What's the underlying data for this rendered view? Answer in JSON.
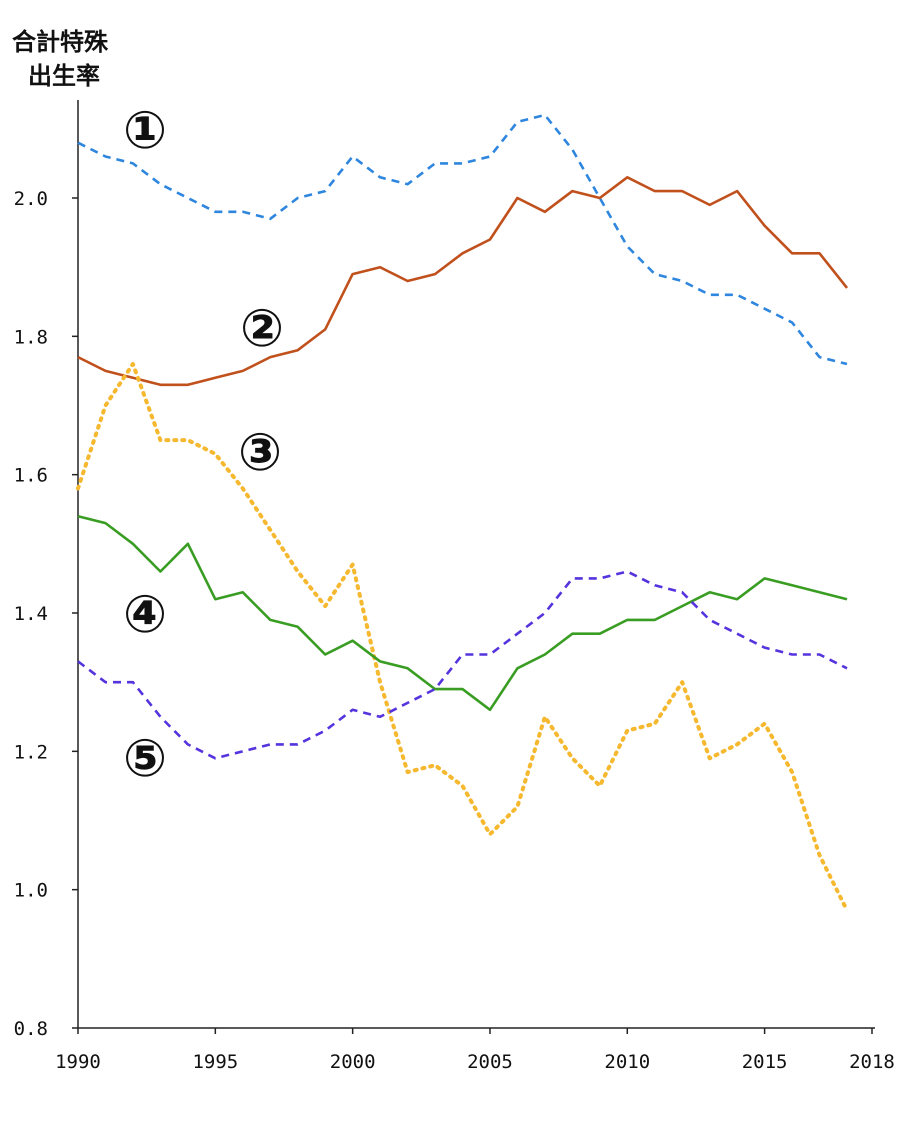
{
  "chart_data": {
    "type": "line",
    "ylabel_lines": [
      "合計特殊",
      "出生率"
    ],
    "x_ticks": [
      "1990",
      "1995",
      "2000",
      "2005",
      "2010",
      "2015",
      "2018"
    ],
    "y_ticks": [
      "0.8",
      "1.0",
      "1.2",
      "1.4",
      "1.6",
      "1.8",
      "2.0"
    ],
    "xlim": [
      1990,
      2018
    ],
    "ylim": [
      0.8,
      2.2
    ],
    "grid": false,
    "series": [
      {
        "label": "①",
        "color": "#2e86de",
        "style": "dashed",
        "x": [
          1990,
          1991,
          1992,
          1993,
          1994,
          1995,
          1996,
          1997,
          1998,
          1999,
          2000,
          2001,
          2002,
          2003,
          2004,
          2005,
          2006,
          2007,
          2008,
          2009,
          2010,
          2011,
          2012,
          2013,
          2014,
          2015,
          2016,
          2017,
          2018
        ],
        "values": [
          2.08,
          2.06,
          2.05,
          2.02,
          2.0,
          1.98,
          1.98,
          1.97,
          2.0,
          2.01,
          2.06,
          2.03,
          2.02,
          2.05,
          2.05,
          2.06,
          2.11,
          2.12,
          2.07,
          2.0,
          1.93,
          1.89,
          1.88,
          1.86,
          1.86,
          1.84,
          1.82,
          1.77,
          1.76
        ]
      },
      {
        "label": "②",
        "color": "#c0501c",
        "style": "solid",
        "x": [
          1990,
          1991,
          1992,
          1993,
          1994,
          1995,
          1996,
          1997,
          1998,
          1999,
          2000,
          2001,
          2002,
          2003,
          2004,
          2005,
          2006,
          2007,
          2008,
          2009,
          2010,
          2011,
          2012,
          2013,
          2014,
          2015,
          2016,
          2017,
          2018
        ],
        "values": [
          1.77,
          1.75,
          1.74,
          1.73,
          1.73,
          1.74,
          1.75,
          1.77,
          1.78,
          1.81,
          1.89,
          1.9,
          1.88,
          1.89,
          1.92,
          1.94,
          2.0,
          1.98,
          2.01,
          2.0,
          2.03,
          2.01,
          2.01,
          1.99,
          2.01,
          1.96,
          1.92,
          1.92,
          1.87
        ]
      },
      {
        "label": "③",
        "color": "#f5b82e",
        "style": "dotted",
        "x": [
          1990,
          1991,
          1992,
          1993,
          1994,
          1995,
          1996,
          1997,
          1998,
          1999,
          2000,
          2001,
          2002,
          2003,
          2004,
          2005,
          2006,
          2007,
          2008,
          2009,
          2010,
          2011,
          2012,
          2013,
          2014,
          2015,
          2016,
          2017,
          2018
        ],
        "values": [
          1.58,
          1.7,
          1.76,
          1.65,
          1.65,
          1.63,
          1.58,
          1.52,
          1.46,
          1.41,
          1.47,
          1.3,
          1.17,
          1.18,
          1.15,
          1.08,
          1.12,
          1.25,
          1.19,
          1.15,
          1.23,
          1.24,
          1.3,
          1.19,
          1.21,
          1.24,
          1.17,
          1.05,
          0.97
        ]
      },
      {
        "label": "④",
        "color": "#3a9d23",
        "style": "solid",
        "x": [
          1990,
          1991,
          1992,
          1993,
          1994,
          1995,
          1996,
          1997,
          1998,
          1999,
          2000,
          2001,
          2002,
          2003,
          2004,
          2005,
          2006,
          2007,
          2008,
          2009,
          2010,
          2011,
          2012,
          2013,
          2014,
          2015,
          2016,
          2017,
          2018
        ],
        "values": [
          1.54,
          1.53,
          1.5,
          1.46,
          1.5,
          1.42,
          1.43,
          1.39,
          1.38,
          1.34,
          1.36,
          1.33,
          1.32,
          1.29,
          1.29,
          1.26,
          1.32,
          1.34,
          1.37,
          1.37,
          1.39,
          1.39,
          1.41,
          1.43,
          1.42,
          1.45,
          1.44,
          1.43,
          1.42
        ]
      },
      {
        "label": "⑤",
        "color": "#5533dd",
        "style": "dashed",
        "x": [
          1990,
          1991,
          1992,
          1993,
          1994,
          1995,
          1996,
          1997,
          1998,
          1999,
          2000,
          2001,
          2002,
          2003,
          2004,
          2005,
          2006,
          2007,
          2008,
          2009,
          2010,
          2011,
          2012,
          2013,
          2014,
          2015,
          2016,
          2017,
          2018
        ],
        "values": [
          1.33,
          1.3,
          1.3,
          1.25,
          1.21,
          1.19,
          1.2,
          1.21,
          1.21,
          1.23,
          1.26,
          1.25,
          1.27,
          1.29,
          1.34,
          1.34,
          1.37,
          1.4,
          1.45,
          1.45,
          1.46,
          1.44,
          1.43,
          1.39,
          1.37,
          1.35,
          1.34,
          1.34,
          1.32
        ]
      }
    ]
  }
}
